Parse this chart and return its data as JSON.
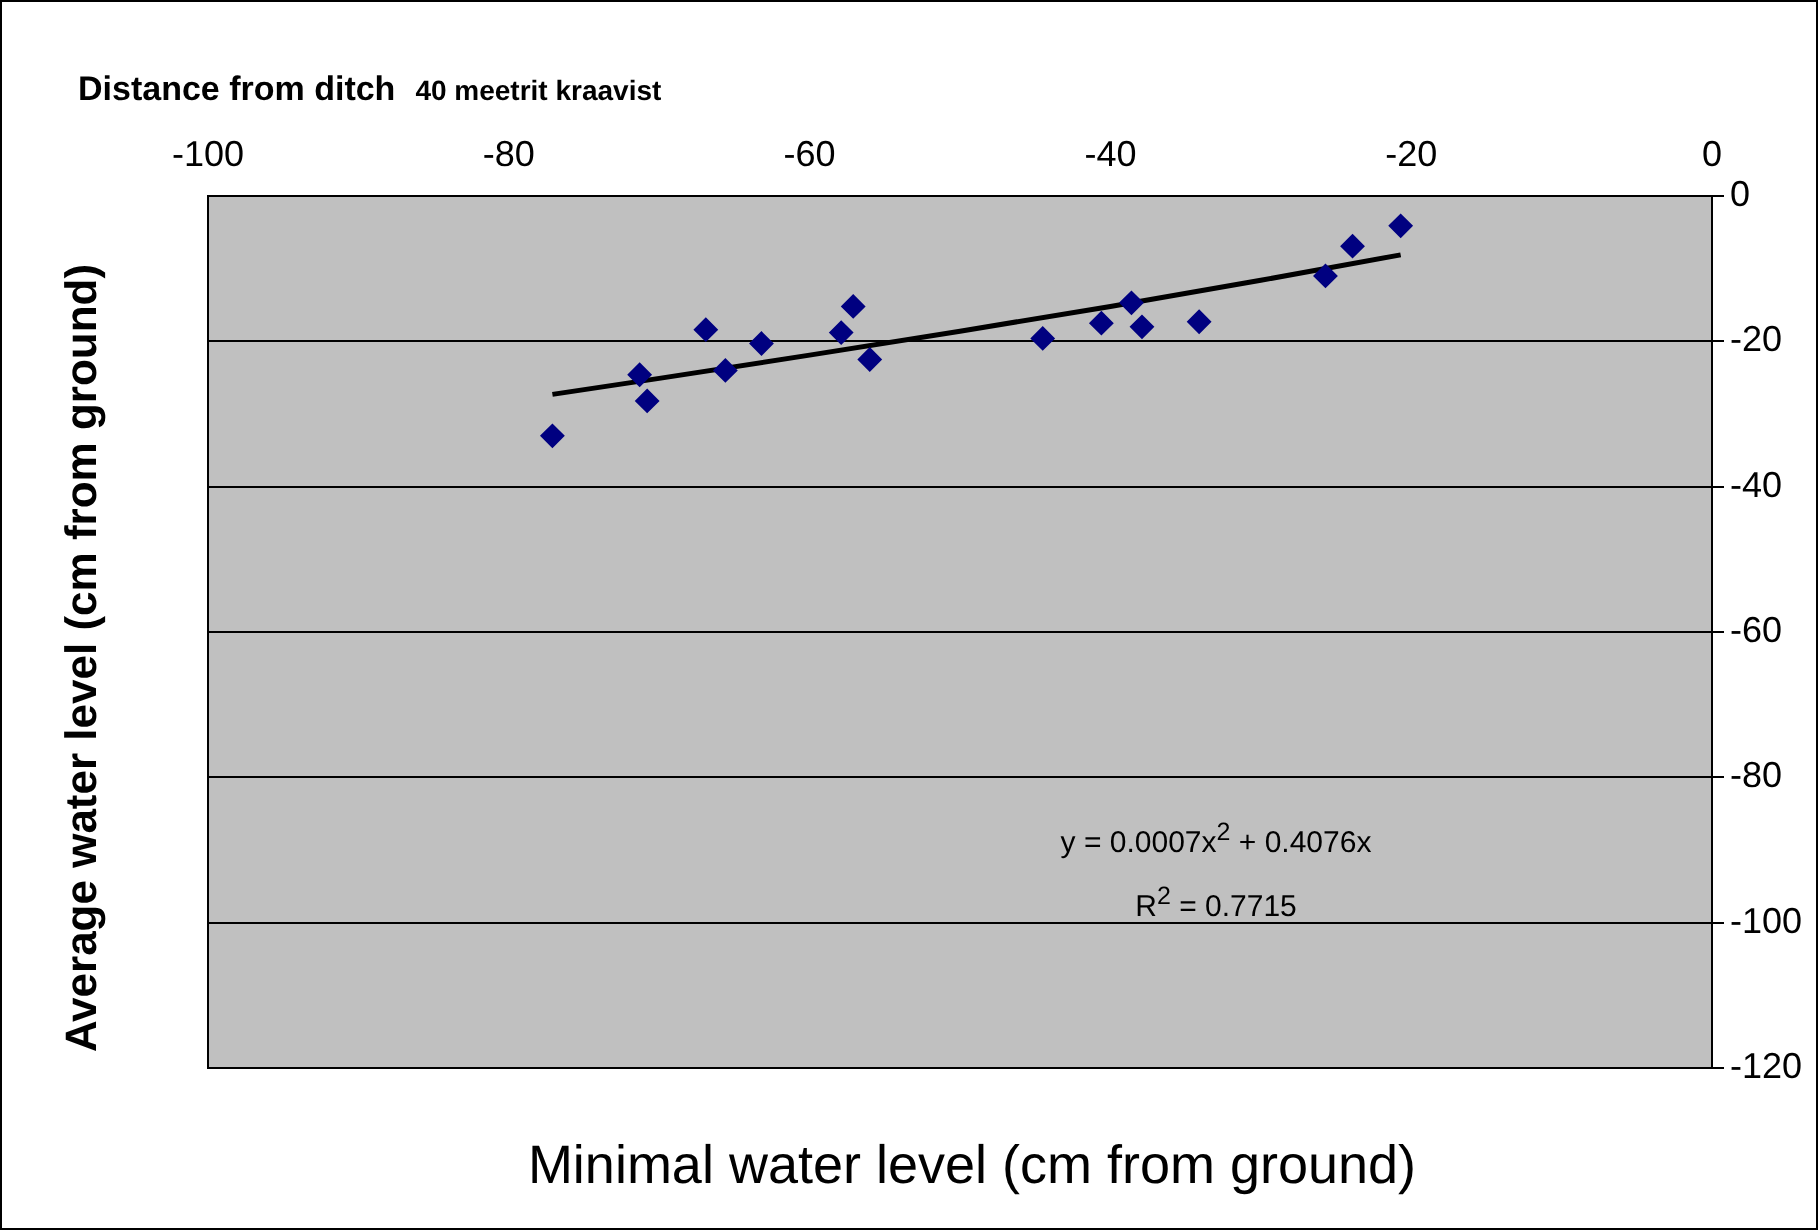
{
  "chart_data": {
    "type": "scatter",
    "title": "Distance from ditch",
    "subtitle": "40 meetrit kraavist",
    "xlabel": "Minimal water level (cm from ground)",
    "ylabel": "Average water level (cm from ground)",
    "annotations": [
      "y = 0.0007x$^{2}$ + 0.4076x",
      "R$^{2}$ = 0.7715"
    ],
    "xlim": [
      -100,
      0
    ],
    "xticks": [
      -100,
      -80,
      -60,
      -40,
      -20,
      0
    ],
    "ylim": [
      -120,
      0
    ],
    "yticks": [
      -120,
      -100,
      -80,
      -60,
      -40,
      -20,
      0
    ],
    "grid": "y",
    "legend": false,
    "series": [
      {
        "marker": "diamond",
        "color": "#000080",
        "x": [
          -77.1,
          -71.3,
          -70.8,
          -66.9,
          -65.6,
          -63.2,
          -57.9,
          -57.1,
          -56.0,
          -44.5,
          -40.6,
          -38.6,
          -37.9,
          -34.1,
          -25.7,
          -23.9,
          -20.7
        ],
        "values": [
          -33.0,
          -24.6,
          -28.2,
          -18.4,
          -24.0,
          -20.3,
          -18.8,
          -15.2,
          -22.5,
          -19.6,
          -17.5,
          -14.7,
          -18.0,
          -17.3,
          -11.0,
          -6.9,
          -4.1
        ]
      },
      {
        "type": "line",
        "marker": "none",
        "color": "#000000",
        "x": [
          -77.1,
          -70,
          -60,
          -50,
          -40,
          -30,
          -20.7
        ],
        "values": [
          -27.3,
          -25.1,
          -21.9,
          -18.6,
          -15.2,
          -11.6,
          -8.1
        ]
      }
    ]
  }
}
